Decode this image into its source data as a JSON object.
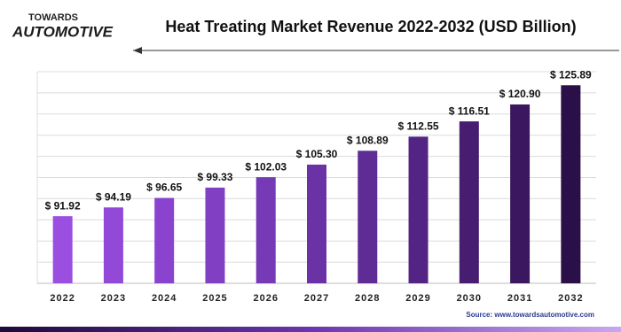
{
  "logo": {
    "top": "TOWARDS",
    "bottom": "AUTOMOTIVE"
  },
  "source": "Source: www.towardsautomotive.com",
  "chart_data": {
    "type": "bar",
    "title": "Heat Treating Market Revenue 2022-2032 (USD Billion)",
    "categories": [
      "2022",
      "2023",
      "2024",
      "2025",
      "2026",
      "2027",
      "2028",
      "2029",
      "2030",
      "2031",
      "2032"
    ],
    "values": [
      91.92,
      94.19,
      96.65,
      99.33,
      102.03,
      105.3,
      108.89,
      112.55,
      116.51,
      120.9,
      125.89
    ],
    "value_labels": [
      "$ 91.92",
      "$ 94.19",
      "$ 96.65",
      "$ 99.33",
      "$ 102.03",
      "$ 105.30",
      "$ 108.89",
      "$ 112.55",
      "$ 116.51",
      "$ 120.90",
      "$ 125.89"
    ],
    "colors": [
      "#9a4fe0",
      "#9249d8",
      "#8a43cf",
      "#8140c4",
      "#763ab7",
      "#6b32a6",
      "#5f2b95",
      "#532483",
      "#461d70",
      "#3a175e",
      "#2b0f48"
    ],
    "ylim": [
      74.5,
      129.4
    ],
    "grid": true
  }
}
